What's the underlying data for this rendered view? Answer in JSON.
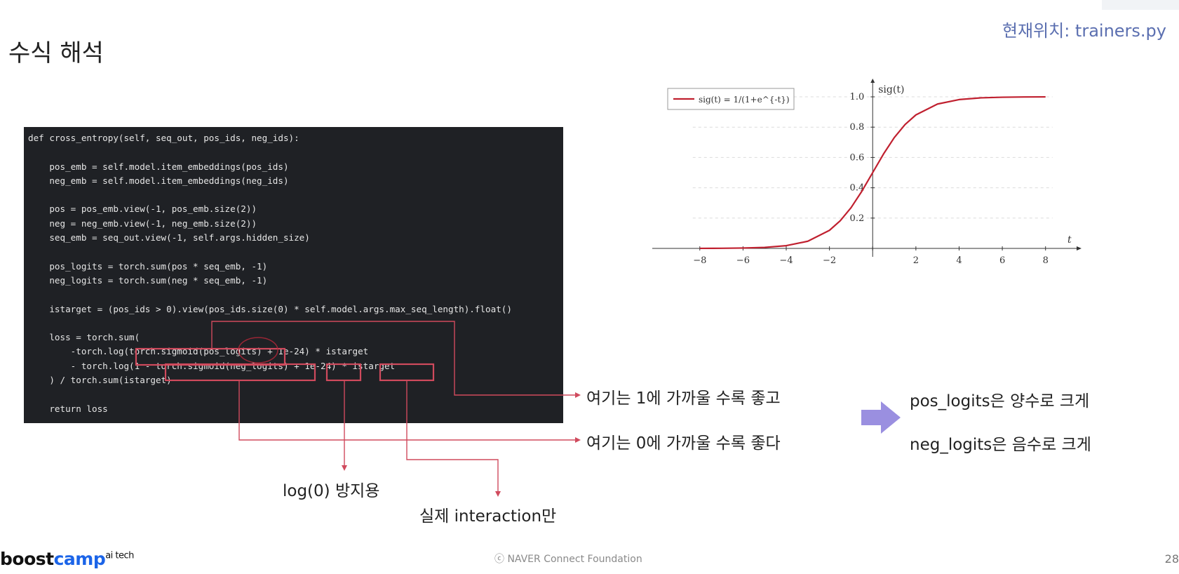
{
  "slide": {
    "title": "수식 해석",
    "location": "현재위치: trainers.py"
  },
  "code": {
    "lines": [
      "def cross_entropy(self, seq_out, pos_ids, neg_ids):",
      "",
      "    pos_emb = self.model.item_embeddings(pos_ids)",
      "    neg_emb = self.model.item_embeddings(neg_ids)",
      "",
      "    pos = pos_emb.view(-1, pos_emb.size(2))",
      "    neg = neg_emb.view(-1, neg_emb.size(2))",
      "    seq_emb = seq_out.view(-1, self.args.hidden_size)",
      "",
      "    pos_logits = torch.sum(pos * seq_emb, -1)",
      "    neg_logits = torch.sum(neg * seq_emb, -1)",
      "",
      "    istarget = (pos_ids > 0).view(pos_ids.size(0) * self.model.args.max_seq_length).float()",
      "",
      "    loss = torch.sum(",
      "        -torch.log(torch.sigmoid(pos_logits) + 1e-24) * istarget",
      "        - torch.log(1 - torch.sigmoid(neg_logits) + 1e-24) * istarget",
      "    ) / torch.sum(istarget)",
      "",
      "    return loss"
    ]
  },
  "annotations": {
    "pos_close_to_1": "여기는 1에 가까울 수록 좋고",
    "neg_close_to_0": "여기는 0에 가까울 수록 좋다",
    "log_guard": "log(0) 방지용",
    "real_interaction": "실제 interaction만",
    "pos_logits_large": "pos_logits은 양수로 크게",
    "neg_logits_large": "neg_logits은 음수로 크게"
  },
  "footer": {
    "brand_boost": "boost",
    "brand_camp": "camp",
    "brand_sup": "ai tech",
    "copyright": "ⓒ  NAVER Connect Foundation",
    "page": "28"
  },
  "colors": {
    "highlight_box": "#d04a5d",
    "sigmoid_curve": "#c0202f",
    "arrow_purple": "#9a8fe0",
    "code_bg": "#1f2125"
  },
  "chart_data": {
    "type": "line",
    "title": "",
    "function": "sigmoid",
    "xlabel": "t",
    "ylabel": "sig(t)",
    "legend": "sig(t) = 1/(1+e^{-t})",
    "legend_position": "top-left",
    "xlim": [
      -8,
      8
    ],
    "ylim": [
      0,
      1
    ],
    "xticks": [
      -8,
      -6,
      -4,
      -2,
      0,
      2,
      4,
      6,
      8
    ],
    "xtick_labels": [
      "−8",
      "−6",
      "−4",
      "−2",
      "",
      "2",
      "4",
      "6",
      "8"
    ],
    "yticks": [
      0.2,
      0.4,
      0.6,
      0.8,
      1.0
    ],
    "ytick_labels": [
      "0.2",
      "0.4",
      "0.6",
      "0.8",
      "1.0"
    ],
    "grid": "horizontal dashed",
    "series": [
      {
        "x": [
          -8,
          -7,
          -6,
          -5,
          -4,
          -3,
          -2,
          -1.5,
          -1,
          -0.5,
          0,
          0.5,
          1,
          1.5,
          2,
          3,
          4,
          5,
          6,
          7,
          8
        ],
        "y": [
          0.0003,
          0.0009,
          0.0025,
          0.0067,
          0.018,
          0.0474,
          0.1192,
          0.1824,
          0.2689,
          0.3775,
          0.5,
          0.6225,
          0.7311,
          0.8176,
          0.8808,
          0.9526,
          0.982,
          0.9933,
          0.9975,
          0.9991,
          0.9997
        ]
      }
    ]
  }
}
